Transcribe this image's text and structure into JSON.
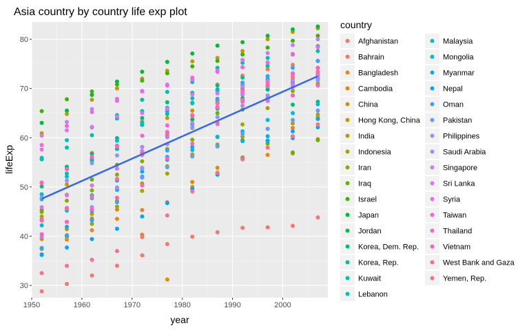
{
  "chart_data": {
    "type": "scatter",
    "title": "Asia country by country life exp plot",
    "xlabel": "year",
    "ylabel": "lifeExp",
    "xlim": [
      1950,
      2009
    ],
    "ylim": [
      27.5,
      83.5
    ],
    "x_ticks": [
      1950,
      1960,
      1970,
      1980,
      1990,
      2000
    ],
    "y_ticks": [
      30,
      40,
      50,
      60,
      70,
      80
    ],
    "grid": true,
    "legend_title": "country",
    "legend_position": "right",
    "years": [
      1952,
      1957,
      1962,
      1967,
      1972,
      1977,
      1982,
      1987,
      1992,
      1997,
      2002,
      2007
    ],
    "series": [
      {
        "name": "Afghanistan",
        "color": "#F8766D",
        "values": [
          28.8,
          30.3,
          32.0,
          34.0,
          36.1,
          38.4,
          39.9,
          40.8,
          41.7,
          41.8,
          42.1,
          43.8
        ]
      },
      {
        "name": "Bahrain",
        "color": "#F07E4E",
        "values": [
          50.9,
          53.8,
          56.9,
          59.9,
          63.3,
          65.6,
          69.1,
          70.8,
          72.6,
          73.9,
          74.8,
          75.6
        ]
      },
      {
        "name": "Bangladesh",
        "color": "#E7861B",
        "values": [
          37.5,
          39.3,
          41.2,
          43.5,
          45.3,
          46.9,
          50.0,
          52.8,
          56.0,
          59.4,
          62.0,
          64.1
        ]
      },
      {
        "name": "Cambodia",
        "color": "#DC8D00",
        "values": [
          39.4,
          41.4,
          43.4,
          45.4,
          40.3,
          31.2,
          51.0,
          53.9,
          55.8,
          56.5,
          56.8,
          59.7
        ]
      },
      {
        "name": "China",
        "color": "#D09400",
        "values": [
          44.0,
          50.5,
          44.5,
          58.4,
          63.1,
          64.0,
          65.5,
          67.3,
          68.7,
          70.4,
          72.0,
          73.0
        ]
      },
      {
        "name": "Hong Kong, China",
        "color": "#C19A00",
        "values": [
          60.9,
          64.8,
          67.7,
          70.0,
          72.0,
          73.6,
          75.5,
          76.2,
          77.6,
          80.0,
          81.5,
          82.2
        ]
      },
      {
        "name": "India",
        "color": "#B0A000",
        "values": [
          37.4,
          40.2,
          43.6,
          47.2,
          50.7,
          54.2,
          56.6,
          58.6,
          60.2,
          61.8,
          62.9,
          64.7
        ]
      },
      {
        "name": "Indonesia",
        "color": "#9DA700",
        "values": [
          37.5,
          39.9,
          42.5,
          46.0,
          49.2,
          52.7,
          56.2,
          60.1,
          62.7,
          66.0,
          68.6,
          70.7
        ]
      },
      {
        "name": "Iran",
        "color": "#85AD00",
        "values": [
          44.9,
          47.2,
          49.3,
          52.5,
          55.2,
          57.7,
          59.6,
          63.0,
          65.7,
          68.0,
          69.5,
          71.0
        ]
      },
      {
        "name": "Iraq",
        "color": "#67B200",
        "values": [
          45.3,
          48.4,
          51.5,
          54.5,
          56.9,
          60.4,
          62.0,
          65.0,
          59.5,
          58.8,
          57.0,
          59.5
        ]
      },
      {
        "name": "Israel",
        "color": "#39B600",
        "values": [
          65.4,
          67.8,
          69.4,
          70.8,
          71.6,
          73.1,
          74.5,
          75.6,
          76.9,
          78.3,
          79.7,
          80.7
        ]
      },
      {
        "name": "Japan",
        "color": "#00BA38",
        "values": [
          63.0,
          65.5,
          68.7,
          71.4,
          73.4,
          75.4,
          77.1,
          78.7,
          79.4,
          80.7,
          82.0,
          82.6
        ]
      },
      {
        "name": "Jordan",
        "color": "#00BC56",
        "values": [
          43.2,
          45.7,
          48.1,
          51.6,
          56.5,
          61.1,
          63.7,
          65.9,
          68.0,
          69.8,
          71.3,
          72.5
        ]
      },
      {
        "name": "Korea, Dem. Rep.",
        "color": "#00BF7D",
        "values": [
          50.1,
          54.1,
          56.7,
          59.9,
          64.0,
          67.2,
          69.1,
          70.6,
          70.0,
          67.7,
          66.7,
          67.3
        ]
      },
      {
        "name": "Korea, Rep.",
        "color": "#00C097",
        "values": [
          47.5,
          52.7,
          55.3,
          57.7,
          62.6,
          64.8,
          67.1,
          69.8,
          72.2,
          74.6,
          77.0,
          78.6
        ]
      },
      {
        "name": "Kuwait",
        "color": "#00C1AA",
        "values": [
          55.6,
          58.0,
          60.5,
          64.6,
          67.7,
          69.3,
          71.3,
          74.2,
          75.2,
          76.2,
          76.9,
          77.6
        ]
      },
      {
        "name": "Lebanon",
        "color": "#00C0BB",
        "values": [
          55.9,
          59.5,
          62.1,
          63.9,
          65.4,
          66.1,
          67.0,
          67.9,
          69.3,
          70.3,
          71.0,
          72.0
        ]
      },
      {
        "name": "Malaysia",
        "color": "#00BDD0",
        "values": [
          48.5,
          52.1,
          55.7,
          59.4,
          63.0,
          65.3,
          68.0,
          69.5,
          70.7,
          71.9,
          73.0,
          74.2
        ]
      },
      {
        "name": "Mongolia",
        "color": "#00B8E5",
        "values": [
          42.2,
          45.2,
          48.3,
          51.3,
          53.8,
          55.5,
          57.5,
          60.2,
          61.3,
          63.6,
          65.0,
          66.8
        ]
      },
      {
        "name": "Myanmar",
        "color": "#00B0F6",
        "values": [
          36.3,
          41.9,
          45.1,
          49.4,
          53.1,
          56.1,
          58.1,
          58.3,
          59.3,
          60.3,
          59.9,
          62.1
        ]
      },
      {
        "name": "Nepal",
        "color": "#00A7FF",
        "values": [
          36.2,
          37.7,
          39.4,
          41.5,
          44.0,
          46.7,
          49.6,
          52.5,
          55.7,
          59.4,
          61.3,
          63.8
        ]
      },
      {
        "name": "Oman",
        "color": "#35A2FF",
        "values": [
          37.6,
          40.1,
          43.2,
          46.9,
          52.1,
          57.4,
          62.7,
          67.7,
          71.2,
          72.5,
          74.2,
          75.6
        ]
      },
      {
        "name": "Pakistan",
        "color": "#619CFF",
        "values": [
          43.4,
          45.6,
          47.7,
          49.8,
          51.9,
          54.0,
          56.2,
          58.2,
          60.8,
          61.8,
          63.6,
          65.5
        ]
      },
      {
        "name": "Philippines",
        "color": "#9590FF",
        "values": [
          47.8,
          51.3,
          54.8,
          56.4,
          58.1,
          60.1,
          62.1,
          64.2,
          66.5,
          68.6,
          70.3,
          71.7
        ]
      },
      {
        "name": "Saudi Arabia",
        "color": "#AC88FF",
        "values": [
          39.9,
          42.9,
          45.9,
          49.9,
          53.9,
          58.7,
          63.0,
          66.3,
          68.8,
          70.5,
          71.6,
          72.8
        ]
      },
      {
        "name": "Singapore",
        "color": "#C77CFF",
        "values": [
          60.4,
          63.2,
          65.8,
          67.9,
          69.5,
          70.8,
          71.8,
          73.6,
          75.8,
          77.2,
          78.8,
          80.0
        ]
      },
      {
        "name": "Sri Lanka",
        "color": "#DC71FA",
        "values": [
          57.6,
          61.5,
          62.2,
          64.3,
          65.0,
          65.9,
          68.8,
          69.0,
          70.4,
          70.5,
          70.8,
          72.4
        ]
      },
      {
        "name": "Syria",
        "color": "#EB6AF0",
        "values": [
          45.9,
          48.3,
          50.3,
          53.7,
          57.3,
          61.2,
          64.6,
          66.97,
          69.2,
          71.5,
          73.1,
          74.1
        ]
      },
      {
        "name": "Taiwan",
        "color": "#F763E0",
        "values": [
          58.5,
          62.4,
          65.2,
          67.5,
          69.4,
          70.6,
          72.2,
          73.4,
          74.3,
          75.3,
          76.99,
          78.4
        ]
      },
      {
        "name": "Thailand",
        "color": "#FF61CC",
        "values": [
          50.8,
          53.6,
          56.1,
          58.3,
          60.4,
          62.5,
          64.6,
          66.1,
          67.3,
          67.5,
          68.6,
          70.6
        ]
      },
      {
        "name": "Vietnam",
        "color": "#FF62B6",
        "values": [
          40.4,
          42.9,
          45.4,
          47.8,
          50.3,
          55.8,
          58.8,
          62.8,
          67.7,
          70.7,
          73.0,
          74.2
        ]
      },
      {
        "name": "West Bank and Gaza",
        "color": "#FF679F",
        "values": [
          43.2,
          45.7,
          48.1,
          51.6,
          56.5,
          60.8,
          64.4,
          67.0,
          69.7,
          71.1,
          72.4,
          73.4
        ]
      },
      {
        "name": "Yemen, Rep.",
        "color": "#FD6F86",
        "values": [
          32.5,
          33.97,
          35.2,
          36.98,
          39.8,
          44.2,
          49.1,
          52.9,
          55.6,
          58.0,
          60.3,
          62.7
        ]
      }
    ],
    "trend_line": {
      "color": "#3366FF",
      "x": [
        1952,
        2007
      ],
      "y": [
        47.6,
        72.5
      ]
    }
  }
}
